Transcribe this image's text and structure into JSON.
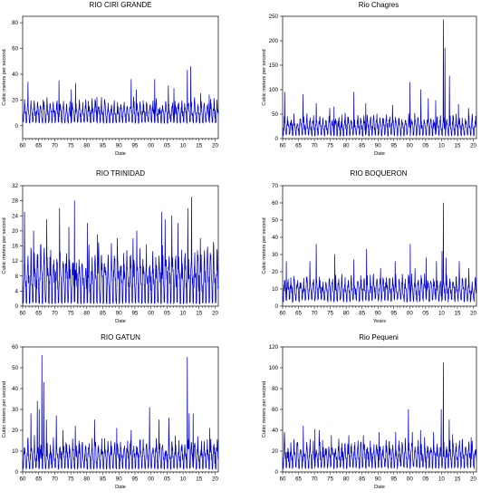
{
  "figure": {
    "background": "#ffffff",
    "line_color": "#0000cc"
  },
  "chart_data": [
    {
      "type": "line",
      "title": "RIO CIRI GRANDE",
      "xlabel": "Date",
      "ylabel": "Cubic meters per second",
      "xlim": [
        1960,
        2021
      ],
      "ylim": [
        -10,
        85
      ],
      "yticks": [
        0,
        20,
        40,
        60,
        80
      ],
      "xticks": [
        "60",
        "65",
        "70",
        "75",
        "80",
        "85",
        "90",
        "95",
        "00",
        "05",
        "10",
        "15",
        "20"
      ],
      "series": [
        {
          "baseline": 3,
          "peak_typical": 15,
          "peaks": [
            [
              1961.7,
              34
            ],
            [
              1966.4,
              20
            ],
            [
              1971.3,
              35
            ],
            [
              1975.2,
              28
            ],
            [
              1976.5,
              33
            ],
            [
              1983.2,
              22
            ],
            [
              1993.8,
              36
            ],
            [
              1995.4,
              28
            ],
            [
              2001.2,
              36
            ],
            [
              2005.4,
              31
            ],
            [
              2007.2,
              29
            ],
            [
              2011.3,
              43
            ],
            [
              2012.4,
              46
            ],
            [
              2015.5,
              25
            ],
            [
              2018.2,
              24
            ]
          ]
        }
      ]
    },
    {
      "type": "line",
      "title": "Rio Chagres",
      "xlabel": "Date",
      "ylabel": "Cubic meters per second",
      "xlim": [
        1960,
        2021
      ],
      "ylim": [
        0,
        250
      ],
      "yticks": [
        0,
        50,
        100,
        150,
        200,
        250
      ],
      "xticks": [
        "60",
        "65",
        "70",
        "75",
        "80",
        "85",
        "90",
        "95",
        "00",
        "05",
        "10",
        "15",
        "20"
      ],
      "series": [
        {
          "baseline": 8,
          "peak_typical": 35,
          "peaks": [
            [
              1960.7,
              95
            ],
            [
              1966.4,
              90
            ],
            [
              1970.6,
              72
            ],
            [
              1974.8,
              62
            ],
            [
              1976.2,
              65
            ],
            [
              1982.4,
              95
            ],
            [
              1986.2,
              72
            ],
            [
              1994.6,
              68
            ],
            [
              2000.1,
              115
            ],
            [
              2003.5,
              100
            ],
            [
              2005.8,
              82
            ],
            [
              2008.2,
              78
            ],
            [
              2010.6,
              243
            ],
            [
              2011.1,
              185
            ],
            [
              2012.5,
              128
            ],
            [
              2015.3,
              70
            ],
            [
              2018.5,
              62
            ]
          ]
        }
      ]
    },
    {
      "type": "line",
      "title": "RIO TRINIDAD",
      "xlabel": "Date",
      "ylabel": "Cubic meters per second",
      "xlim": [
        1960,
        2021
      ],
      "ylim": [
        0,
        32
      ],
      "yticks": [
        0,
        4,
        8,
        12,
        16,
        20,
        24,
        28,
        32
      ],
      "xticks": [
        "60",
        "65",
        "70",
        "75",
        "80",
        "85",
        "90",
        "95",
        "00",
        "05",
        "10",
        "15",
        "20"
      ],
      "series": [
        {
          "baseline": 1,
          "peak_typical": 13,
          "peaks": [
            [
              1960.6,
              25
            ],
            [
              1963.4,
              20
            ],
            [
              1967.5,
              23
            ],
            [
              1971.5,
              26
            ],
            [
              1974.4,
              21
            ],
            [
              1976.2,
              28
            ],
            [
              1980.2,
              22
            ],
            [
              1983.3,
              19
            ],
            [
              1989.5,
              18
            ],
            [
              1994.4,
              18
            ],
            [
              1995.6,
              20
            ],
            [
              2003.3,
              25
            ],
            [
              2004.4,
              23
            ],
            [
              2006.5,
              24
            ],
            [
              2008.4,
              22
            ],
            [
              2011.5,
              26
            ],
            [
              2012.7,
              29
            ],
            [
              2015.4,
              18
            ],
            [
              2019.5,
              17
            ]
          ]
        }
      ]
    },
    {
      "type": "line",
      "title": "RIO BOQUERON",
      "xlabel": "Years",
      "ylabel": "Cubic meters per second",
      "xlim": [
        1960,
        2021
      ],
      "ylim": [
        0,
        70
      ],
      "yticks": [
        0,
        10,
        20,
        30,
        40,
        50,
        60,
        70
      ],
      "xticks": [
        "60",
        "65",
        "70",
        "75",
        "80",
        "85",
        "90",
        "95",
        "00",
        "05",
        "10",
        "15",
        "20"
      ],
      "series": [
        {
          "baseline": 4,
          "peak_typical": 12,
          "peaks": [
            [
              1961.2,
              26
            ],
            [
              1968.6,
              26
            ],
            [
              1970.6,
              36
            ],
            [
              1976.4,
              30
            ],
            [
              1982.4,
              27
            ],
            [
              1986.4,
              33
            ],
            [
              1990.8,
              22
            ],
            [
              1995.4,
              26
            ],
            [
              2000.2,
              36
            ],
            [
              2001.7,
              22
            ],
            [
              2005.2,
              28
            ],
            [
              2008.4,
              26
            ],
            [
              2010.2,
              32
            ],
            [
              2010.6,
              60
            ],
            [
              2011.4,
              28
            ],
            [
              2015.6,
              26
            ],
            [
              2018.6,
              22
            ]
          ]
        }
      ]
    },
    {
      "type": "line",
      "title": "RIO GATUN",
      "xlabel": "Date",
      "ylabel": "Cubic meters per second",
      "xlim": [
        1960,
        2021
      ],
      "ylim": [
        0,
        60
      ],
      "yticks": [
        0,
        10,
        20,
        30,
        40,
        50,
        60
      ],
      "xticks": [
        "60",
        "65",
        "70",
        "75",
        "80",
        "85",
        "90",
        "95",
        "00",
        "05",
        "10",
        "15",
        "20"
      ],
      "series": [
        {
          "baseline": 2,
          "peak_typical": 12,
          "peaks": [
            [
              1962.6,
              28
            ],
            [
              1964.6,
              34
            ],
            [
              1965.2,
              30
            ],
            [
              1966.0,
              56
            ],
            [
              1966.6,
              43
            ],
            [
              1967.4,
              25
            ],
            [
              1970.5,
              27
            ],
            [
              1972.6,
              20
            ],
            [
              1976.4,
              22
            ],
            [
              1982.4,
              25
            ],
            [
              1989.3,
              21
            ],
            [
              1993.8,
              20
            ],
            [
              1999.6,
              31
            ],
            [
              2002.5,
              25
            ],
            [
              2005.6,
              26
            ],
            [
              2011.3,
              55
            ],
            [
              2011.9,
              28
            ],
            [
              2013.2,
              28
            ],
            [
              2018.3,
              21
            ]
          ]
        }
      ]
    },
    {
      "type": "line",
      "title": "Rio Pequeni",
      "xlabel": "Date",
      "ylabel": "Cubic meters per second",
      "xlim": [
        1960,
        2021
      ],
      "ylim": [
        0,
        120
      ],
      "yticks": [
        0,
        20,
        40,
        60,
        80,
        100,
        120
      ],
      "xticks": [
        "60",
        "65",
        "70",
        "75",
        "80",
        "85",
        "90",
        "95",
        "00",
        "05",
        "10",
        "15",
        "20"
      ],
      "series": [
        {
          "baseline": 5,
          "peak_typical": 22,
          "peaks": [
            [
              1960.6,
              38
            ],
            [
              1966.5,
              44
            ],
            [
              1970.2,
              41
            ],
            [
              1971.5,
              40
            ],
            [
              1975.3,
              35
            ],
            [
              1980.8,
              35
            ],
            [
              1985.4,
              35
            ],
            [
              1990.3,
              38
            ],
            [
              1995.6,
              38
            ],
            [
              1999.6,
              60
            ],
            [
              2000.8,
              38
            ],
            [
              2003.4,
              40
            ],
            [
              2007.5,
              38
            ],
            [
              2009.9,
              60
            ],
            [
              2010.6,
              105
            ],
            [
              2012.4,
              50
            ],
            [
              2013.5,
              36
            ],
            [
              2016.5,
              30
            ],
            [
              2019.3,
              33
            ]
          ]
        }
      ]
    }
  ]
}
